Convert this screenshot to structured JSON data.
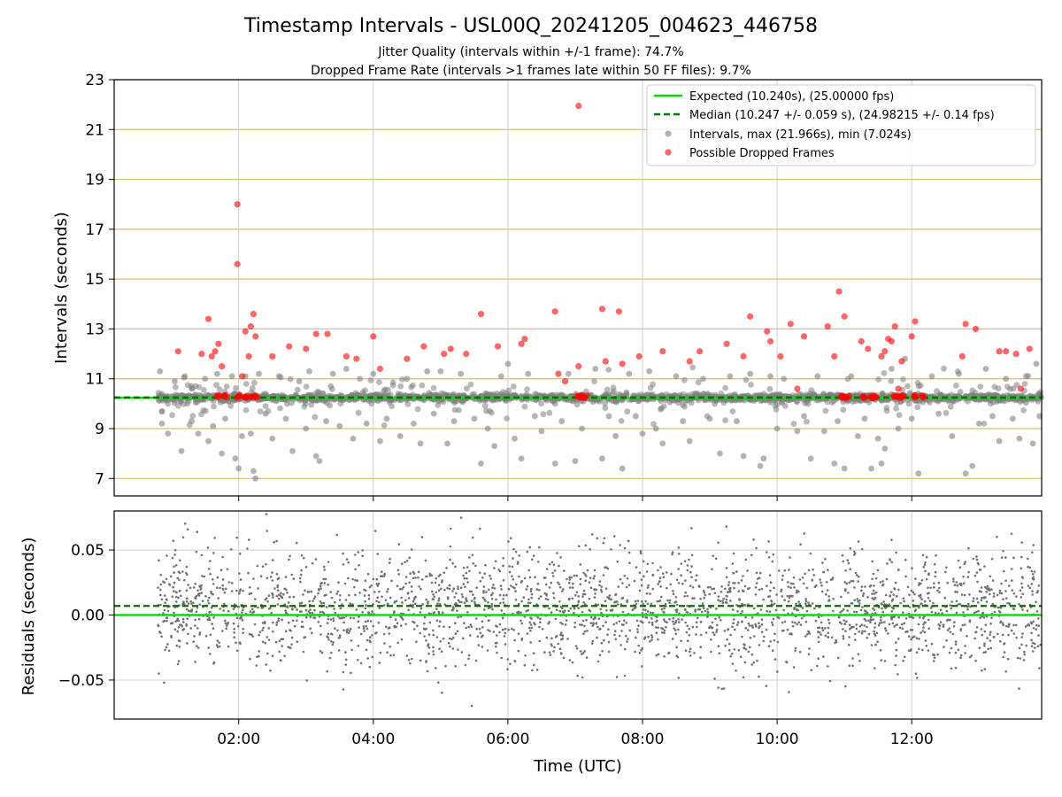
{
  "chart_data": [
    {
      "type": "scatter",
      "title": "Timestamp Intervals - USL00Q_20241205_004623_446758",
      "subtitle_lines": [
        "Jitter Quality (intervals within +/-1 frame): 74.7%",
        "Dropped Frame Rate (intervals >1 frames late within 50 FF files): 9.7%"
      ],
      "xlabel": "",
      "ylabel": "Intervals (seconds)",
      "x_time_range_hours": [
        0.15,
        13.93
      ],
      "xlim_labels": [
        "00:09",
        "13:56"
      ],
      "ylim": [
        6.3,
        23
      ],
      "yticks": [
        7,
        9,
        11,
        13,
        15,
        17,
        19,
        21,
        23
      ],
      "grid": true,
      "legend_position": "top-right",
      "legend": [
        {
          "label": "Expected (10.240s), (25.00000 fps)",
          "style": "solid-line",
          "color": "#00e000"
        },
        {
          "label": "Median (10.247 +/- 0.059 s), (24.98215 +/- 0.14 fps)",
          "style": "dashed-line",
          "color": "#007a00"
        },
        {
          "label": "Intervals, max (21.966s), min (7.024s)",
          "style": "marker",
          "color": "#808080"
        },
        {
          "label": "Possible Dropped Frames",
          "style": "marker",
          "color": "#ff0000"
        }
      ],
      "reference_lines": {
        "expected": 10.24,
        "median": 10.247
      },
      "series": [
        {
          "name": "Intervals, max (21.966s), min (7.024s)",
          "color": "#808080",
          "points": [
            [
              0.83,
              11.3
            ],
            [
              0.86,
              9.2
            ],
            [
              0.95,
              8.8
            ],
            [
              1.05,
              10.9
            ],
            [
              1.15,
              8.1
            ],
            [
              1.2,
              11.1
            ],
            [
              1.3,
              9.3
            ],
            [
              1.4,
              8.8
            ],
            [
              1.5,
              11.0
            ],
            [
              1.55,
              8.5
            ],
            [
              1.62,
              9.1
            ],
            [
              1.68,
              11.2
            ],
            [
              1.75,
              8.0
            ],
            [
              1.8,
              9.4
            ],
            [
              1.9,
              11.1
            ],
            [
              1.95,
              7.8
            ],
            [
              2.0,
              7.4
            ],
            [
              2.05,
              8.7
            ],
            [
              2.1,
              11.1
            ],
            [
              2.18,
              8.8
            ],
            [
              2.22,
              7.3
            ],
            [
              2.25,
              7.0
            ],
            [
              2.3,
              11.2
            ],
            [
              2.4,
              9.6
            ],
            [
              2.5,
              8.6
            ],
            [
              2.6,
              11.1
            ],
            [
              2.7,
              9.4
            ],
            [
              2.8,
              8.1
            ],
            [
              2.9,
              10.9
            ],
            [
              3.0,
              9.0
            ],
            [
              3.05,
              11.3
            ],
            [
              3.15,
              7.9
            ],
            [
              3.2,
              7.7
            ],
            [
              3.3,
              9.3
            ],
            [
              3.4,
              11.2
            ],
            [
              3.5,
              9.1
            ],
            [
              3.6,
              11.4
            ],
            [
              3.7,
              8.6
            ],
            [
              3.8,
              11.0
            ],
            [
              3.9,
              9.2
            ],
            [
              4.0,
              11.2
            ],
            [
              4.1,
              8.5
            ],
            [
              4.2,
              9.4
            ],
            [
              4.4,
              8.7
            ],
            [
              4.5,
              11.0
            ],
            [
              4.6,
              9.2
            ],
            [
              4.7,
              8.4
            ],
            [
              4.8,
              11.3
            ],
            [
              4.9,
              9.6
            ],
            [
              5.0,
              11.3
            ],
            [
              5.1,
              8.4
            ],
            [
              5.2,
              9.3
            ],
            [
              5.3,
              11.2
            ],
            [
              5.5,
              9.4
            ],
            [
              5.6,
              7.6
            ],
            [
              5.7,
              9.0
            ],
            [
              5.8,
              8.3
            ],
            [
              5.9,
              11.1
            ],
            [
              6.0,
              11.6
            ],
            [
              6.1,
              8.6
            ],
            [
              6.2,
              7.8
            ],
            [
              6.3,
              11.2
            ],
            [
              6.4,
              9.5
            ],
            [
              6.5,
              8.9
            ],
            [
              6.7,
              7.6
            ],
            [
              6.8,
              9.3
            ],
            [
              6.9,
              11.2
            ],
            [
              7.0,
              7.7
            ],
            [
              7.1,
              9.0
            ],
            [
              7.3,
              11.4
            ],
            [
              7.4,
              7.8
            ],
            [
              7.5,
              9.5
            ],
            [
              7.6,
              8.7
            ],
            [
              7.7,
              7.4
            ],
            [
              7.8,
              11.2
            ],
            [
              7.9,
              9.5
            ],
            [
              8.0,
              8.8
            ],
            [
              8.1,
              11.3
            ],
            [
              8.2,
              9.0
            ],
            [
              8.3,
              8.4
            ],
            [
              8.5,
              11.1
            ],
            [
              8.6,
              9.3
            ],
            [
              8.7,
              8.5
            ],
            [
              8.9,
              11.0
            ],
            [
              9.0,
              9.4
            ],
            [
              9.15,
              8.0
            ],
            [
              9.3,
              11.1
            ],
            [
              9.4,
              9.3
            ],
            [
              9.5,
              7.9
            ],
            [
              9.6,
              11.2
            ],
            [
              9.75,
              7.5
            ],
            [
              9.8,
              7.8
            ],
            [
              9.9,
              11.1
            ],
            [
              10.0,
              9.0
            ],
            [
              10.1,
              11.0
            ],
            [
              10.3,
              8.9
            ],
            [
              10.4,
              9.5
            ],
            [
              10.5,
              7.8
            ],
            [
              10.6,
              11.1
            ],
            [
              10.7,
              8.9
            ],
            [
              10.85,
              7.6
            ],
            [
              10.9,
              9.3
            ],
            [
              11.0,
              7.4
            ],
            [
              11.1,
              11.1
            ],
            [
              11.2,
              8.7
            ],
            [
              11.3,
              9.4
            ],
            [
              11.4,
              7.4
            ],
            [
              11.5,
              8.6
            ],
            [
              11.55,
              7.6
            ],
            [
              11.6,
              8.2
            ],
            [
              11.7,
              11.4
            ],
            [
              11.8,
              9.0
            ],
            [
              11.9,
              11.8
            ],
            [
              12.0,
              9.4
            ],
            [
              12.1,
              7.2
            ],
            [
              12.3,
              11.1
            ],
            [
              12.4,
              9.6
            ],
            [
              12.6,
              8.7
            ],
            [
              12.7,
              11.2
            ],
            [
              12.8,
              7.2
            ],
            [
              12.9,
              7.5
            ],
            [
              13.0,
              9.2
            ],
            [
              13.1,
              11.4
            ],
            [
              13.2,
              9.5
            ],
            [
              13.3,
              8.5
            ],
            [
              13.4,
              11.0
            ],
            [
              13.5,
              9.4
            ],
            [
              13.6,
              8.6
            ],
            [
              13.7,
              11.1
            ],
            [
              13.8,
              8.4
            ],
            [
              13.85,
              11.6
            ],
            [
              13.9,
              9.5
            ]
          ]
        },
        {
          "name": "Possible Dropped Frames",
          "color": "#ff0000",
          "points": [
            [
              1.1,
              12.1
            ],
            [
              1.45,
              12.0
            ],
            [
              1.55,
              13.4
            ],
            [
              1.6,
              11.9
            ],
            [
              1.65,
              12.1
            ],
            [
              1.7,
              12.4
            ],
            [
              1.75,
              11.5
            ],
            [
              1.98,
              18.0
            ],
            [
              1.98,
              15.6
            ],
            [
              2.05,
              11.1
            ],
            [
              2.1,
              12.9
            ],
            [
              2.15,
              11.9
            ],
            [
              2.18,
              13.1
            ],
            [
              2.22,
              13.6
            ],
            [
              2.25,
              12.7
            ],
            [
              2.5,
              11.9
            ],
            [
              2.75,
              12.3
            ],
            [
              3.0,
              12.2
            ],
            [
              3.15,
              12.8
            ],
            [
              3.32,
              12.8
            ],
            [
              3.6,
              11.9
            ],
            [
              3.75,
              11.8
            ],
            [
              4.0,
              12.7
            ],
            [
              4.1,
              11.4
            ],
            [
              4.5,
              11.8
            ],
            [
              4.75,
              12.3
            ],
            [
              5.05,
              12.0
            ],
            [
              5.15,
              12.2
            ],
            [
              5.38,
              12.0
            ],
            [
              5.6,
              13.6
            ],
            [
              5.85,
              12.3
            ],
            [
              6.2,
              12.4
            ],
            [
              6.25,
              12.6
            ],
            [
              6.7,
              13.7
            ],
            [
              6.75,
              11.2
            ],
            [
              6.85,
              10.9
            ],
            [
              7.05,
              21.95
            ],
            [
              7.05,
              11.5
            ],
            [
              7.4,
              13.8
            ],
            [
              7.45,
              11.7
            ],
            [
              7.65,
              13.7
            ],
            [
              7.7,
              11.6
            ],
            [
              7.95,
              11.9
            ],
            [
              8.3,
              12.1
            ],
            [
              8.7,
              11.7
            ],
            [
              8.85,
              12.1
            ],
            [
              9.25,
              12.4
            ],
            [
              9.5,
              11.9
            ],
            [
              9.6,
              13.5
            ],
            [
              9.85,
              12.9
            ],
            [
              9.9,
              12.5
            ],
            [
              10.05,
              11.9
            ],
            [
              10.2,
              13.2
            ],
            [
              10.3,
              10.6
            ],
            [
              10.4,
              12.7
            ],
            [
              10.75,
              13.1
            ],
            [
              10.85,
              11.9
            ],
            [
              10.92,
              14.5
            ],
            [
              11.0,
              13.5
            ],
            [
              11.25,
              12.5
            ],
            [
              11.35,
              12.2
            ],
            [
              11.55,
              11.9
            ],
            [
              11.6,
              12.1
            ],
            [
              11.65,
              12.6
            ],
            [
              11.7,
              12.5
            ],
            [
              11.75,
              13.1
            ],
            [
              11.8,
              10.6
            ],
            [
              11.85,
              11.7
            ],
            [
              12.0,
              12.7
            ],
            [
              12.05,
              13.3
            ],
            [
              12.75,
              11.9
            ],
            [
              12.8,
              13.2
            ],
            [
              12.95,
              13.0
            ],
            [
              13.3,
              12.1
            ],
            [
              13.4,
              12.1
            ],
            [
              13.55,
              12.0
            ],
            [
              13.62,
              10.6
            ],
            [
              13.75,
              12.2
            ]
          ],
          "clusters_at_expected": [
            1.7,
            1.8,
            2.0,
            2.1,
            2.2,
            2.25,
            7.05,
            7.1,
            7.15,
            10.95,
            11.0,
            11.05,
            11.3,
            11.4,
            11.45,
            11.75,
            11.8,
            11.85,
            12.05,
            12.15
          ]
        }
      ]
    },
    {
      "type": "scatter",
      "xlabel": "Time (UTC)",
      "ylabel": "Residuals (seconds)",
      "x_ticks": [
        {
          "hour": 2,
          "label": "02:00"
        },
        {
          "hour": 4,
          "label": "04:00"
        },
        {
          "hour": 6,
          "label": "06:00"
        },
        {
          "hour": 8,
          "label": "08:00"
        },
        {
          "hour": 10,
          "label": "10:00"
        },
        {
          "hour": 12,
          "label": "12:00"
        }
      ],
      "ylim": [
        -0.08,
        0.08
      ],
      "yticks": [
        0.05,
        0.0,
        -0.05
      ],
      "ytick_labels": [
        "0.05",
        "0.00",
        "−0.05"
      ],
      "grid": true,
      "reference_lines": {
        "expected": 0.0,
        "median": 0.007
      },
      "series": [
        {
          "name": "",
          "color": "#707070",
          "x_range_hours": [
            0.8,
            13.93
          ],
          "approx_count": 2600,
          "spread_sigma": 0.022,
          "median_offset": 0.007
        }
      ]
    }
  ]
}
